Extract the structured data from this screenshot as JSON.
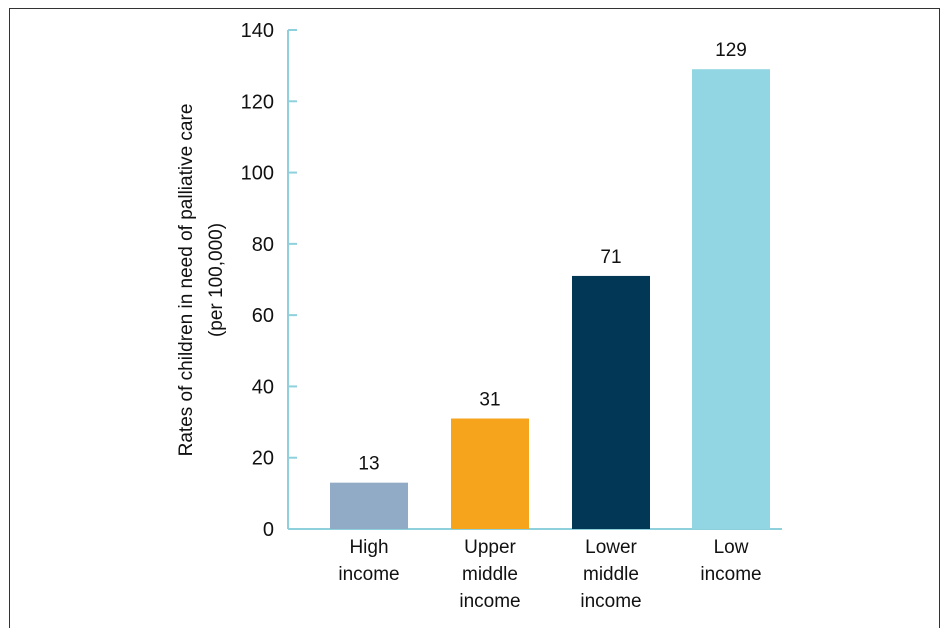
{
  "chart_data": {
    "type": "bar",
    "categories": [
      [
        "High",
        "income"
      ],
      [
        "Upper",
        "middle",
        "income"
      ],
      [
        "Lower",
        "middle",
        "income"
      ],
      [
        "Low",
        "income"
      ]
    ],
    "values": [
      13,
      31,
      71,
      129
    ],
    "data_labels": [
      "13",
      "31",
      "71",
      "129"
    ],
    "colors": [
      "#91abc6",
      "#f7a41d",
      "#023755",
      "#92d6e3"
    ],
    "axis_color": "#8fd0dd",
    "ylabel": [
      "Rates of children in need of palliative care",
      "(per 100,000)"
    ],
    "xlabel": "",
    "ylim": [
      0,
      140
    ],
    "yticks": [
      0,
      20,
      40,
      60,
      80,
      100,
      120,
      140
    ],
    "grid": false,
    "legend": "none"
  }
}
